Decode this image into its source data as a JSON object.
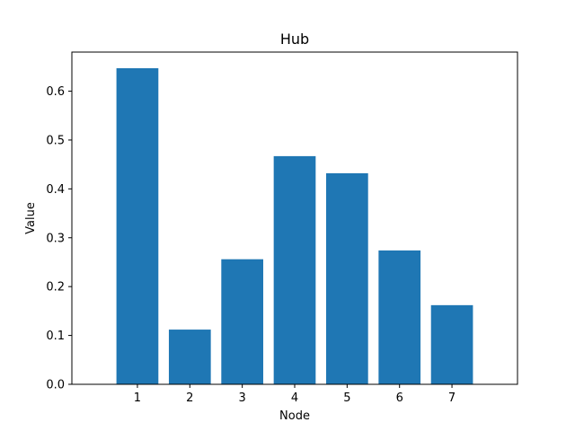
{
  "chart_data": {
    "type": "bar",
    "title": "Hub",
    "xlabel": "Node",
    "ylabel": "Value",
    "categories": [
      "1",
      "2",
      "3",
      "4",
      "5",
      "6",
      "7"
    ],
    "values": [
      0.647,
      0.112,
      0.256,
      0.467,
      0.432,
      0.274,
      0.162
    ],
    "ylim": [
      0,
      0.68
    ],
    "yticks": [
      "0.0",
      "0.1",
      "0.2",
      "0.3",
      "0.4",
      "0.5",
      "0.6"
    ],
    "bar_color": "#1f77b4",
    "grid": false
  }
}
